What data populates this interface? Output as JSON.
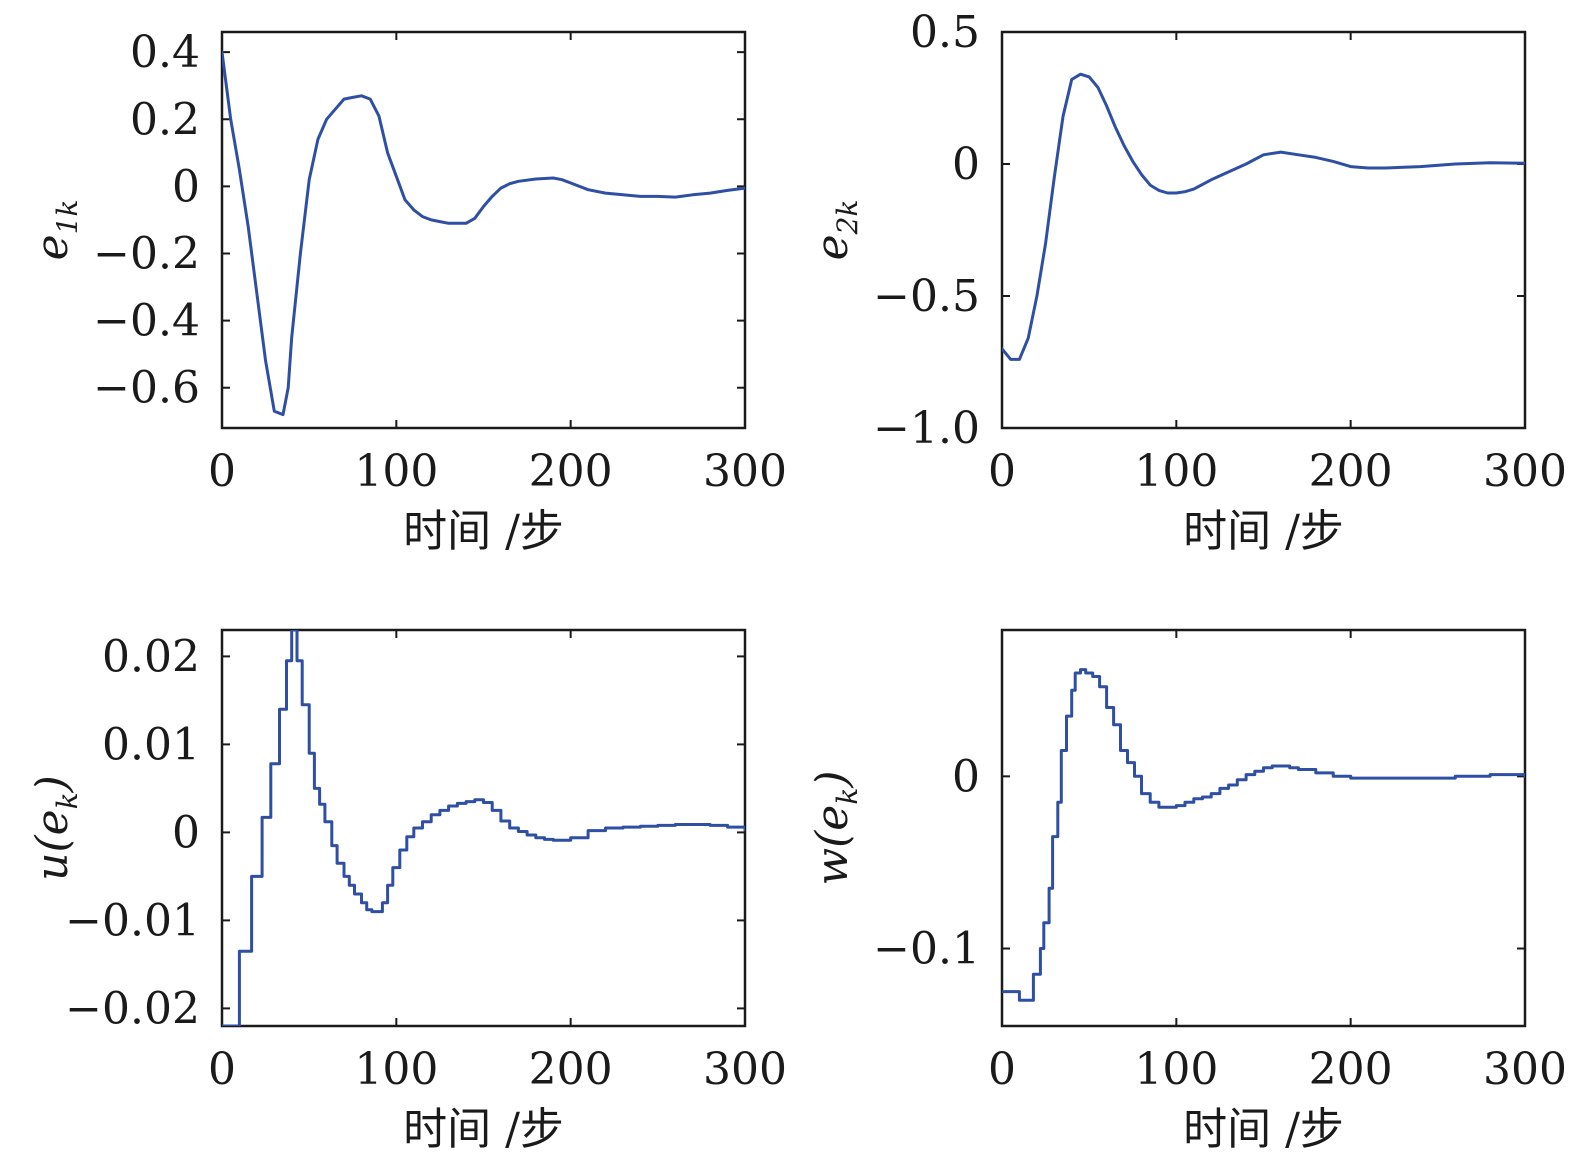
{
  "colors": {
    "series": "#2e4fa3",
    "axes": "#1a1a1a",
    "background": "#ffffff"
  },
  "chart_data": [
    {
      "id": "e1k",
      "type": "line",
      "ylabel_base": "e",
      "ylabel_sub": "1k",
      "xlabel": "时间 /步",
      "xlim": [
        0,
        300
      ],
      "ylim": [
        -0.72,
        0.46
      ],
      "xticks": [
        0,
        100,
        200,
        300
      ],
      "xtick_labels": [
        "0",
        "100",
        "200",
        "300"
      ],
      "yticks": [
        0.4,
        0.2,
        0,
        -0.2,
        -0.4,
        -0.6
      ],
      "ytick_labels": [
        "0.4",
        "0.2",
        "0",
        "−0.2",
        "−0.4",
        "−0.6"
      ],
      "grid": false,
      "legend": "none",
      "step": false,
      "x": [
        0,
        5,
        10,
        15,
        20,
        25,
        30,
        35,
        38,
        40,
        45,
        50,
        55,
        60,
        65,
        70,
        75,
        80,
        85,
        90,
        95,
        100,
        105,
        110,
        115,
        120,
        125,
        130,
        135,
        140,
        145,
        150,
        155,
        160,
        165,
        170,
        180,
        190,
        195,
        200,
        210,
        220,
        230,
        240,
        250,
        260,
        270,
        280,
        290,
        300
      ],
      "y": [
        0.4,
        0.2,
        0.05,
        -0.12,
        -0.32,
        -0.52,
        -0.67,
        -0.68,
        -0.6,
        -0.45,
        -0.2,
        0.02,
        0.14,
        0.2,
        0.23,
        0.26,
        0.265,
        0.27,
        0.26,
        0.21,
        0.1,
        0.03,
        -0.04,
        -0.07,
        -0.09,
        -0.1,
        -0.105,
        -0.11,
        -0.11,
        -0.11,
        -0.095,
        -0.06,
        -0.03,
        -0.005,
        0.008,
        0.015,
        0.022,
        0.025,
        0.02,
        0.01,
        -0.01,
        -0.02,
        -0.025,
        -0.03,
        -0.03,
        -0.032,
        -0.025,
        -0.02,
        -0.012,
        -0.005
      ]
    },
    {
      "id": "e2k",
      "type": "line",
      "ylabel_base": "e",
      "ylabel_sub": "2k",
      "xlabel": "时间 /步",
      "xlim": [
        0,
        300
      ],
      "ylim": [
        -1.0,
        0.5
      ],
      "xticks": [
        0,
        100,
        200,
        300
      ],
      "xtick_labels": [
        "0",
        "100",
        "200",
        "300"
      ],
      "yticks": [
        0.5,
        0,
        -0.5,
        -1.0
      ],
      "ytick_labels": [
        "0.5",
        "0",
        "−0.5",
        "−1.0"
      ],
      "grid": false,
      "legend": "none",
      "step": false,
      "x": [
        0,
        5,
        10,
        15,
        20,
        25,
        30,
        35,
        40,
        45,
        50,
        55,
        60,
        65,
        70,
        75,
        80,
        85,
        90,
        95,
        100,
        105,
        110,
        120,
        130,
        140,
        150,
        160,
        170,
        180,
        190,
        200,
        210,
        220,
        240,
        260,
        280,
        300
      ],
      "y": [
        -0.7,
        -0.74,
        -0.74,
        -0.66,
        -0.5,
        -0.3,
        -0.05,
        0.18,
        0.32,
        0.34,
        0.33,
        0.29,
        0.22,
        0.14,
        0.07,
        0.01,
        -0.04,
        -0.08,
        -0.1,
        -0.11,
        -0.11,
        -0.105,
        -0.095,
        -0.06,
        -0.03,
        0.0,
        0.035,
        0.045,
        0.035,
        0.025,
        0.01,
        -0.01,
        -0.015,
        -0.015,
        -0.01,
        0.0,
        0.005,
        0.003
      ]
    },
    {
      "id": "u",
      "type": "line",
      "ylabel_base": "u(e",
      "ylabel_sub": "k",
      "ylabel_tail": ")",
      "xlabel": "时间 /步",
      "xlim": [
        0,
        300
      ],
      "ylim": [
        -0.022,
        0.023
      ],
      "xticks": [
        0,
        100,
        200,
        300
      ],
      "xtick_labels": [
        "0",
        "100",
        "200",
        "300"
      ],
      "yticks": [
        0.02,
        0.01,
        0,
        -0.01,
        -0.02
      ],
      "ytick_labels": [
        "0.02",
        "0.01",
        "0",
        "−0.01",
        "−0.02"
      ],
      "grid": false,
      "legend": "none",
      "step": true,
      "x": [
        0,
        8,
        10,
        15,
        17,
        20,
        23,
        25,
        28,
        30,
        33,
        35,
        37,
        40,
        43,
        46,
        50,
        53,
        56,
        59,
        63,
        66,
        70,
        73,
        76,
        80,
        83,
        86,
        89,
        92,
        95,
        98,
        102,
        106,
        110,
        115,
        120,
        125,
        130,
        135,
        140,
        145,
        150,
        155,
        160,
        165,
        170,
        175,
        180,
        185,
        190,
        195,
        200,
        210,
        220,
        230,
        240,
        250,
        260,
        270,
        280,
        290,
        300
      ],
      "y": [
        -0.022,
        -0.022,
        -0.0135,
        -0.0135,
        -0.005,
        -0.005,
        0.0017,
        0.0017,
        0.0078,
        0.0078,
        0.014,
        0.014,
        0.0195,
        0.023,
        0.0195,
        0.0145,
        0.009,
        0.005,
        0.0032,
        0.0012,
        -0.0015,
        -0.0035,
        -0.005,
        -0.006,
        -0.007,
        -0.008,
        -0.0088,
        -0.009,
        -0.009,
        -0.008,
        -0.006,
        -0.004,
        -0.002,
        -0.0005,
        0.0005,
        0.0012,
        0.002,
        0.0025,
        0.003,
        0.0033,
        0.0035,
        0.0037,
        0.0034,
        0.0025,
        0.0013,
        0.0005,
        0.0001,
        -0.0003,
        -0.0006,
        -0.0008,
        -0.0009,
        -0.0009,
        -0.0006,
        0.0002,
        0.0005,
        0.0006,
        0.0007,
        0.0008,
        0.0009,
        0.0009,
        0.0008,
        0.0006,
        0.0003
      ]
    },
    {
      "id": "w",
      "type": "line",
      "ylabel_base": "w(e",
      "ylabel_sub": "k",
      "ylabel_tail": ")",
      "xlabel": "时间 /步",
      "xlim": [
        0,
        300
      ],
      "ylim": [
        -0.145,
        0.085
      ],
      "xticks": [
        0,
        100,
        200,
        300
      ],
      "xtick_labels": [
        "0",
        "100",
        "200",
        "300"
      ],
      "yticks": [
        0,
        -0.1
      ],
      "ytick_labels": [
        "0",
        "−0.1"
      ],
      "grid": false,
      "legend": "none",
      "step": true,
      "x": [
        0,
        8,
        10,
        16,
        18,
        22,
        24,
        27,
        29,
        32,
        34,
        37,
        40,
        42,
        45,
        48,
        52,
        56,
        60,
        64,
        68,
        72,
        76,
        80,
        85,
        90,
        95,
        100,
        105,
        110,
        115,
        120,
        125,
        130,
        135,
        140,
        145,
        150,
        155,
        160,
        165,
        170,
        180,
        190,
        200,
        210,
        220,
        240,
        260,
        280,
        300
      ],
      "y": [
        -0.125,
        -0.125,
        -0.13,
        -0.13,
        -0.115,
        -0.1,
        -0.085,
        -0.065,
        -0.035,
        -0.015,
        0.015,
        0.035,
        0.05,
        0.06,
        0.062,
        0.06,
        0.058,
        0.052,
        0.04,
        0.03,
        0.015,
        0.008,
        0.0,
        -0.01,
        -0.015,
        -0.018,
        -0.018,
        -0.017,
        -0.015,
        -0.013,
        -0.012,
        -0.01,
        -0.007,
        -0.005,
        -0.002,
        0.001,
        0.003,
        0.005,
        0.006,
        0.006,
        0.005,
        0.004,
        0.002,
        0.0,
        -0.001,
        -0.001,
        -0.001,
        -0.001,
        0.0,
        0.001,
        0.0
      ]
    }
  ]
}
